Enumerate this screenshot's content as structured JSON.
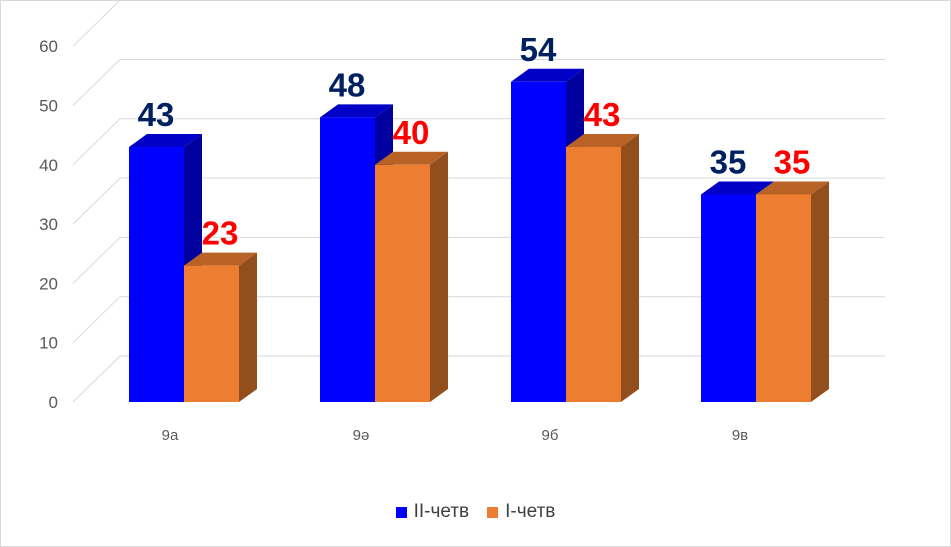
{
  "chart_data": {
    "type": "bar",
    "categories": [
      "9а",
      "9ә",
      "9б",
      "9в"
    ],
    "series": [
      {
        "name": "II-четв",
        "values": [
          43,
          48,
          54,
          35
        ],
        "color": "#0000ff",
        "label_color": "#002060"
      },
      {
        "name": "I-четв",
        "values": [
          23,
          40,
          43,
          35
        ],
        "color": "#ed7d31",
        "label_color": "#ff0000"
      }
    ],
    "yticks": [
      0,
      10,
      20,
      30,
      40,
      50,
      60
    ],
    "ylim": [
      0,
      60
    ],
    "grid": true,
    "legend_position": "bottom",
    "style": "3d-clustered-column"
  }
}
